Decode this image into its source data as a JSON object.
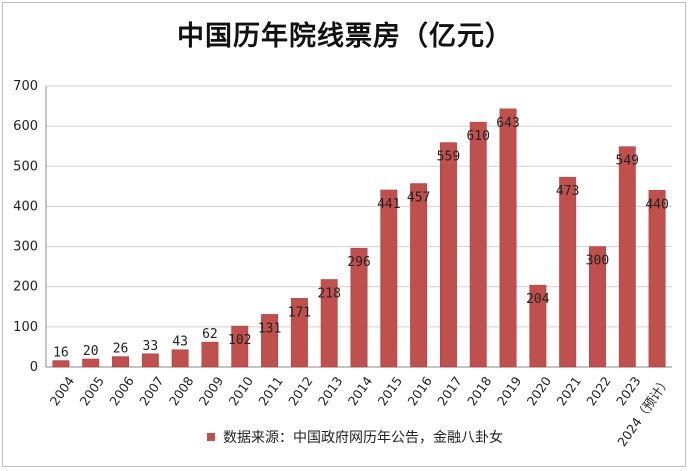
{
  "colors": {
    "bar": "#c0504d",
    "bar_edge": "#9e3b39",
    "grid": "#d0d0d0",
    "axis": "#888888",
    "text": "#222222"
  },
  "chart_data": {
    "type": "bar",
    "title": "中国历年院线票房（亿元）",
    "xlabel": "",
    "ylabel": "",
    "ylim": [
      0,
      700
    ],
    "yticks": [
      0,
      100,
      200,
      300,
      400,
      500,
      600,
      700
    ],
    "grid": true,
    "legend_position": "bottom",
    "categories": [
      "2004",
      "2005",
      "2006",
      "2007",
      "2008",
      "2009",
      "2010",
      "2011",
      "2012",
      "2013",
      "2014",
      "2015",
      "2016",
      "2017",
      "2018",
      "2019",
      "2020",
      "2021",
      "2022",
      "2023",
      "2024（预计）"
    ],
    "series": [
      {
        "name": "数据来源：中国政府网历年公告，金融八卦女",
        "values": [
          16,
          20,
          26,
          33,
          43,
          62,
          102,
          131,
          171,
          218,
          296,
          441,
          457,
          559,
          610,
          643,
          204,
          473,
          300,
          549,
          440
        ]
      }
    ]
  }
}
